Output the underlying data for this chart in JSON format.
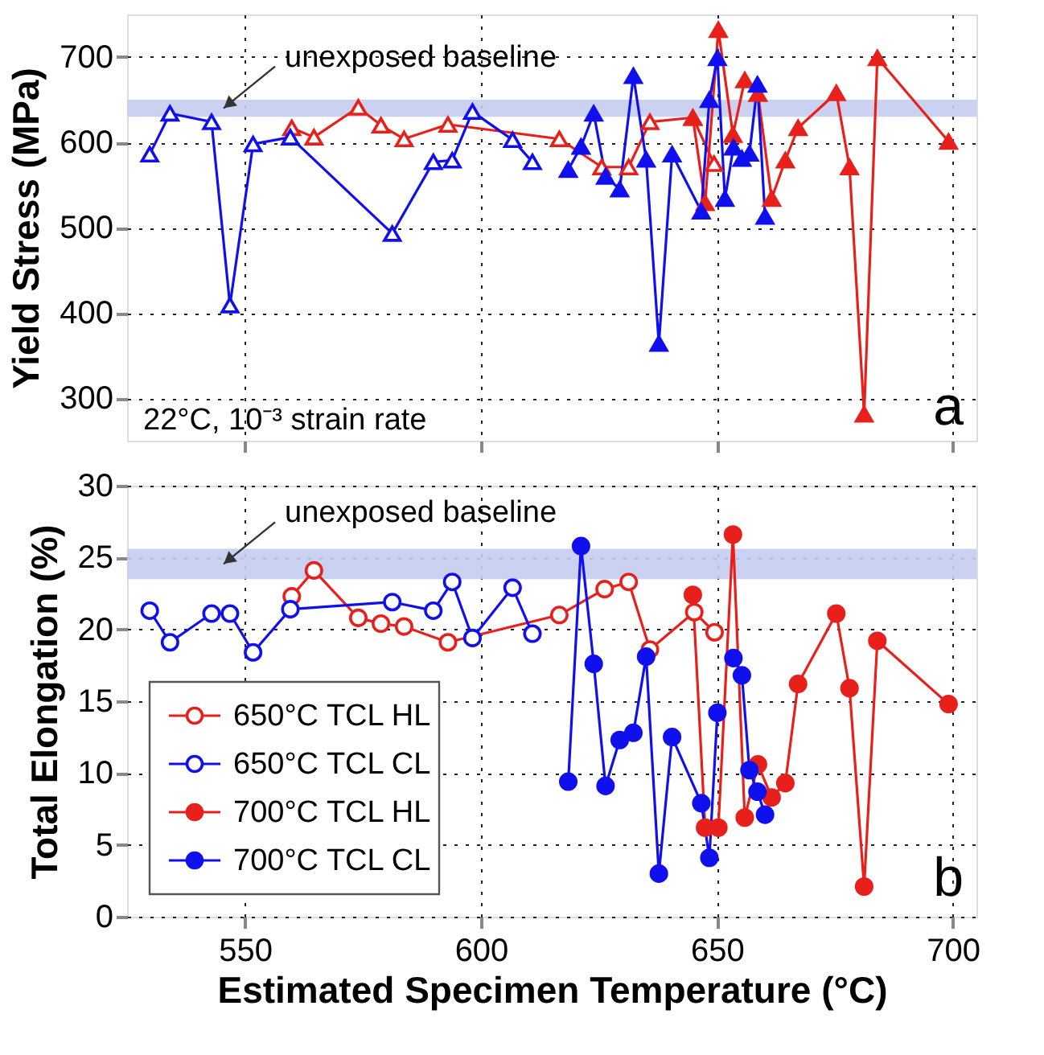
{
  "chart_data": [
    {
      "type": "line",
      "ylabel": "Yield Stress (MPa)",
      "xlim": [
        525,
        705
      ],
      "xticks": [
        550,
        600,
        650,
        700
      ],
      "ylim": [
        250,
        750
      ],
      "yticks": [
        300,
        400,
        500,
        600,
        700
      ],
      "grid": true,
      "legend": false,
      "tick_labels": "y",
      "marker": "triangle",
      "bands": [
        {
          "axis": "y",
          "from": 630,
          "to": 650,
          "color": "#c4ccf0",
          "label": "unexposed baseline"
        }
      ],
      "annotations": [
        "22°C, 10⁻³ strain rate",
        "a"
      ],
      "series": [
        {
          "color": "#e8201c",
          "x": [
            559.9,
            564.6,
            574,
            578.8,
            583.7,
            593,
            616.6,
            625.6,
            631.3,
            635.8,
            644.9,
            649.4
          ],
          "values": [
            617,
            606,
            641,
            620,
            604,
            621,
            604,
            571,
            571,
            624,
            629,
            575
          ]
        },
        {
          "color": "#1010ee",
          "x": [
            529.8,
            534.1,
            542.9,
            546.8,
            551.7,
            559.6,
            581.2,
            589.9,
            593.9,
            598.2,
            606.7,
            610.9
          ],
          "values": [
            586,
            634,
            624,
            409,
            598,
            606,
            493,
            577,
            579,
            636,
            603,
            577
          ]
        },
        {
          "color": "#e8201c",
          "x": [
            644.9,
            647.5,
            650.3,
            653.4,
            655.9,
            658.7,
            661.6,
            664.5,
            667.2,
            675.3,
            678.1,
            681.2,
            684,
            699.1
          ],
          "values": [
            629,
            529,
            732,
            609,
            673,
            657,
            534,
            579,
            617,
            658,
            571,
            281,
            699,
            601
          ]
        },
        {
          "color": "#1010ee",
          "x": [
            618.5,
            621.2,
            623.9,
            626.4,
            629.4,
            632.3,
            635,
            637.7,
            640.5,
            646.7,
            648.4,
            650.1,
            651.7,
            653.5,
            655.3,
            656.9,
            658.6,
            660.2
          ],
          "values": [
            568,
            595,
            634,
            560,
            545,
            678,
            580,
            364,
            586,
            519,
            650,
            699,
            534,
            594,
            581,
            587,
            668,
            513
          ]
        }
      ]
    },
    {
      "type": "line",
      "xlabel": "Estimated Specimen Temperature (°C)",
      "ylabel": "Total Elongation (%)",
      "xlim": [
        525,
        705
      ],
      "xticks": [
        550,
        600,
        650,
        700
      ],
      "ylim": [
        0,
        30
      ],
      "yticks": [
        0,
        5,
        10,
        15,
        20,
        25,
        30
      ],
      "grid": true,
      "legend": "bottom left",
      "marker": "circle",
      "bands": [
        {
          "axis": "y",
          "from": 23.5,
          "to": 25.6,
          "color": "#c4ccf0",
          "label": "unexposed baseline"
        }
      ],
      "annotations": [
        "b"
      ],
      "series": [
        {
          "name": "650°C TCL HL",
          "color": "#e8201c",
          "x": [
            559.9,
            564.6,
            574,
            578.8,
            583.7,
            593,
            616.6,
            626.2,
            631.3,
            635.8,
            645.2,
            649.5
          ],
          "values": [
            22.3,
            24.1,
            20.8,
            20.4,
            20.2,
            19.1,
            21,
            22.8,
            23.3,
            18.6,
            21.2,
            19.8
          ]
        },
        {
          "name": "650°C TCL CL",
          "color": "#1010ee",
          "x": [
            529.8,
            534.1,
            542.9,
            546.8,
            551.7,
            559.6,
            581.2,
            589.9,
            593.9,
            598.2,
            606.7,
            610.9
          ],
          "values": [
            21.3,
            19.1,
            21.1,
            21.1,
            18.4,
            21.4,
            21.9,
            21.3,
            23.3,
            19.4,
            22.9,
            19.7
          ]
        },
        {
          "name": "700°C TCL HL",
          "color": "#e8201c",
          "x": [
            644.9,
            647.5,
            650.3,
            653.4,
            655.9,
            658.7,
            661.6,
            664.5,
            667.2,
            675.3,
            678.1,
            681.2,
            684,
            699.1
          ],
          "values": [
            22.4,
            6.2,
            6.2,
            26.6,
            6.9,
            10.6,
            8.3,
            9.3,
            16.2,
            21.1,
            15.9,
            2.1,
            19.2,
            14.8
          ]
        },
        {
          "name": "700°C TCL CL",
          "color": "#1010ee",
          "x": [
            618.5,
            621.2,
            623.9,
            626.4,
            629.4,
            632.3,
            635,
            637.7,
            640.5,
            646.7,
            648.4,
            650.1,
            651.7,
            653.5,
            655.3,
            656.9,
            658.6,
            660.2
          ],
          "values": [
            9.4,
            25.8,
            17.6,
            9.1,
            12.3,
            12.8,
            18.1,
            3,
            12.5,
            7.9,
            4.1,
            14.2,
            null,
            18,
            16.8,
            10.2,
            8.7,
            7.1
          ]
        }
      ]
    }
  ]
}
